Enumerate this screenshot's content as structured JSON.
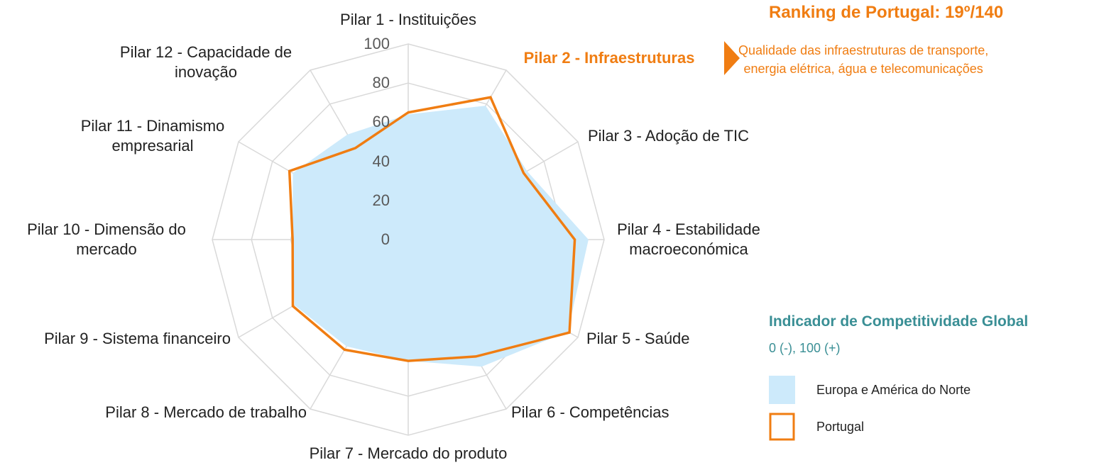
{
  "chart_data": {
    "type": "radar",
    "categories": [
      "Pilar 1 - Instituições",
      "Pilar 2 - Infraestruturas",
      "Pilar 3 - Adoção de TIC",
      "Pilar 4 - Estabilidade\nmacroeconómica",
      "Pilar 5 - Saúde",
      "Pilar 6 - Competências",
      "Pilar 7 - Mercado do produto",
      "Pilar 8 - Mercado de trabalho",
      "Pilar 9 - Sistema financeiro",
      "Pilar 10 - Dimensão do\nmercado",
      "Pilar 11 - Dinamismo\nempresarial",
      "Pilar 12 - Capacidade de\ninovação"
    ],
    "highlight_index": 1,
    "highlight_color": "#f07d12",
    "series": [
      {
        "name": "Europa e América do Norte",
        "color": "#cdeafb",
        "fill": true,
        "values": [
          64,
          79,
          70,
          92,
          94,
          75,
          62,
          63,
          67,
          59,
          68,
          62
        ]
      },
      {
        "name": "Portugal",
        "color": "#f07d12",
        "fill": false,
        "values": [
          65,
          84,
          68,
          85,
          95,
          69,
          62,
          65,
          68,
          59,
          70,
          54
        ]
      }
    ],
    "ylim": [
      0,
      100
    ],
    "yticks": [
      0,
      20,
      40,
      60,
      80,
      100
    ],
    "grid": true,
    "annotations": {
      "ranking": "Ranking de Portugal: 19º/140",
      "description": "Qualidade das infraestruturas de transporte,\nenergia elétrica, água e telecomunicações"
    },
    "legend": {
      "title": "Indicador de Competitividade Global",
      "subtitle": "0 (-), 100 (+)"
    }
  }
}
